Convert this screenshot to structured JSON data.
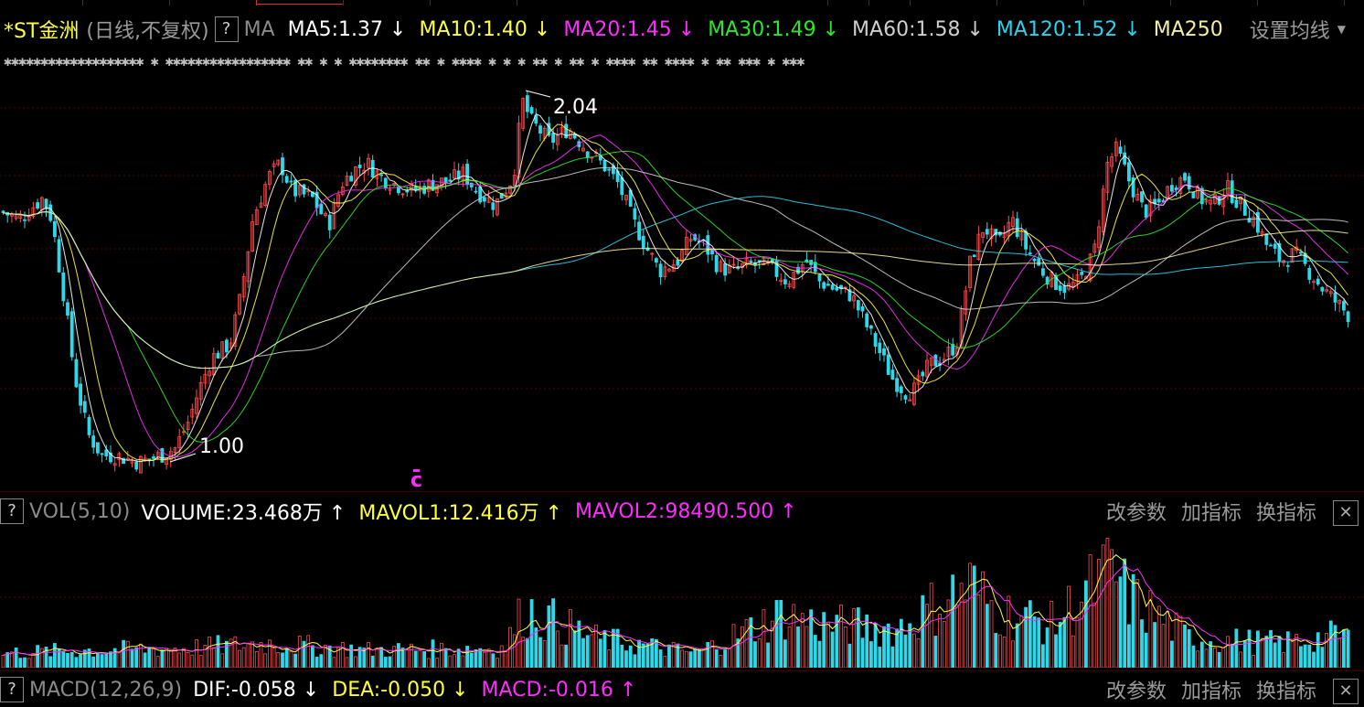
{
  "header": {
    "stock_name": "*ST金洲",
    "mode": "(日线,不复权)",
    "help": "?",
    "indicator": "MA",
    "ma_items": [
      {
        "label": "MA5:1.37",
        "arrow": "↓",
        "color": "#ffffff"
      },
      {
        "label": "MA10:1.40",
        "arrow": "↓",
        "color": "#ffff3c"
      },
      {
        "label": "MA20:1.45",
        "arrow": "↓",
        "color": "#ff2bff"
      },
      {
        "label": "MA30:1.49",
        "arrow": "↓",
        "color": "#29e829"
      },
      {
        "label": "MA60:1.58",
        "arrow": "↓",
        "color": "#cfcfcf"
      },
      {
        "label": "MA120:1.52",
        "arrow": "↓",
        "color": "#2bd2ee"
      },
      {
        "label": "MA250",
        "arrow": "",
        "color": "#f5f0a0"
      }
    ],
    "settings": "设置均线"
  },
  "noise_text": "✱✱✱✱✱✱✱✱✱✱✱✱✱✱✱✱✱✱✱ ✱  ✱✱✱✱✱✱✱✱✱✱✱✱✱✱✱✱✱ ✱✱ ✱ ✱ ✱✱✱✱✱✱✱✱   ✱✱ ✱        ✱✱✱✱ ✱  ✱ ✱ ✱✱    ✱ ✱✱  ✱  ✱✱✱✱ ✱✱ ✱✱✱✱ ✱  ✱✱ ✱✱✱ ✱ ✱✱✱",
  "chart_data": {
    "type": "candlestick",
    "price_high_label": "2.04",
    "price_low_label": "1.00",
    "marker": "c",
    "ylim": [
      0.93,
      2.1
    ],
    "ma_colors": {
      "MA5": "#ffffff",
      "MA10": "#ffff3c",
      "MA20": "#ff2bff",
      "MA30": "#29e829",
      "MA60": "#cfcfcf",
      "MA120": "#2bd2ee",
      "MA250": "#f5f0a0"
    },
    "up_color": "#ff4a4a",
    "down_color": "#2fd8e8",
    "price_anchors": [
      [
        0,
        1.72
      ],
      [
        20,
        1.7
      ],
      [
        45,
        1.76
      ],
      [
        55,
        1.7
      ],
      [
        70,
        1.45
      ],
      [
        80,
        1.25
      ],
      [
        95,
        1.08
      ],
      [
        110,
        1.02
      ],
      [
        125,
        1.02
      ],
      [
        150,
        1.0
      ],
      [
        175,
        1.02
      ],
      [
        190,
        1.04
      ],
      [
        205,
        1.12
      ],
      [
        215,
        1.2
      ],
      [
        230,
        1.3
      ],
      [
        250,
        1.34
      ],
      [
        262,
        1.48
      ],
      [
        275,
        1.7
      ],
      [
        292,
        1.82
      ],
      [
        305,
        1.86
      ],
      [
        318,
        1.78
      ],
      [
        340,
        1.76
      ],
      [
        358,
        1.68
      ],
      [
        372,
        1.8
      ],
      [
        385,
        1.84
      ],
      [
        400,
        1.86
      ],
      [
        415,
        1.82
      ],
      [
        430,
        1.8
      ],
      [
        450,
        1.78
      ],
      [
        470,
        1.8
      ],
      [
        490,
        1.81
      ],
      [
        505,
        1.83
      ],
      [
        520,
        1.78
      ],
      [
        540,
        1.74
      ],
      [
        560,
        1.82
      ],
      [
        570,
        2.04
      ],
      [
        580,
        1.98
      ],
      [
        600,
        1.92
      ],
      [
        620,
        1.96
      ],
      [
        640,
        1.9
      ],
      [
        660,
        1.85
      ],
      [
        675,
        1.8
      ],
      [
        690,
        1.7
      ],
      [
        705,
        1.62
      ],
      [
        720,
        1.55
      ],
      [
        740,
        1.58
      ],
      [
        755,
        1.65
      ],
      [
        770,
        1.62
      ],
      [
        785,
        1.56
      ],
      [
        800,
        1.55
      ],
      [
        820,
        1.57
      ],
      [
        840,
        1.56
      ],
      [
        860,
        1.52
      ],
      [
        880,
        1.58
      ],
      [
        895,
        1.52
      ],
      [
        910,
        1.5
      ],
      [
        930,
        1.48
      ],
      [
        945,
        1.4
      ],
      [
        960,
        1.32
      ],
      [
        975,
        1.24
      ],
      [
        990,
        1.2
      ],
      [
        1000,
        1.21
      ],
      [
        1015,
        1.28
      ],
      [
        1030,
        1.3
      ],
      [
        1045,
        1.34
      ],
      [
        1060,
        1.58
      ],
      [
        1075,
        1.68
      ],
      [
        1090,
        1.62
      ],
      [
        1105,
        1.7
      ],
      [
        1120,
        1.62
      ],
      [
        1135,
        1.56
      ],
      [
        1150,
        1.52
      ],
      [
        1165,
        1.5
      ],
      [
        1180,
        1.52
      ],
      [
        1195,
        1.6
      ],
      [
        1210,
        1.86
      ],
      [
        1220,
        1.9
      ],
      [
        1235,
        1.8
      ],
      [
        1250,
        1.72
      ],
      [
        1265,
        1.74
      ],
      [
        1280,
        1.8
      ],
      [
        1295,
        1.82
      ],
      [
        1310,
        1.76
      ],
      [
        1325,
        1.74
      ],
      [
        1340,
        1.79
      ],
      [
        1355,
        1.74
      ],
      [
        1370,
        1.7
      ],
      [
        1385,
        1.62
      ],
      [
        1400,
        1.58
      ],
      [
        1415,
        1.6
      ],
      [
        1430,
        1.55
      ],
      [
        1445,
        1.5
      ],
      [
        1460,
        1.46
      ],
      [
        1475,
        1.42
      ],
      [
        1478,
        1.37
      ]
    ],
    "volume": {
      "label": "VOL(5,10)",
      "VOLUME": "VOLUME:23.468万",
      "MAVOL1": "MAVOL1:12.416万",
      "MAVOL2": "MAVOL2:98490.500",
      "arrows": [
        "↑",
        "↑",
        "↑"
      ],
      "colors": [
        "#ffffff",
        "#ffff3c",
        "#ff2bff"
      ],
      "peaks": [
        [
          0,
          0.15
        ],
        [
          100,
          0.18
        ],
        [
          200,
          0.2
        ],
        [
          290,
          0.25
        ],
        [
          400,
          0.18
        ],
        [
          550,
          0.2
        ],
        [
          572,
          0.6
        ],
        [
          650,
          0.3
        ],
        [
          760,
          0.15
        ],
        [
          855,
          0.55
        ],
        [
          890,
          0.45
        ],
        [
          980,
          0.4
        ],
        [
          1060,
          0.85
        ],
        [
          1080,
          0.65
        ],
        [
          1100,
          0.55
        ],
        [
          1150,
          0.45
        ],
        [
          1215,
          1.0
        ],
        [
          1230,
          0.75
        ],
        [
          1260,
          0.55
        ],
        [
          1300,
          0.3
        ],
        [
          1400,
          0.25
        ],
        [
          1478,
          0.35
        ]
      ]
    },
    "macd": {
      "label": "MACD(12,26,9)",
      "DIF": "DIF:-0.058",
      "DEA": "DEA:-0.050",
      "MACD": "MACD:-0.016",
      "arrows": [
        "↓",
        "↓",
        "↑"
      ],
      "colors": [
        "#ffffff",
        "#ffff3c",
        "#ff2bff"
      ]
    }
  },
  "panel_actions": {
    "modify": "改参数",
    "add": "加指标",
    "swap": "换指标",
    "close": "✕"
  }
}
